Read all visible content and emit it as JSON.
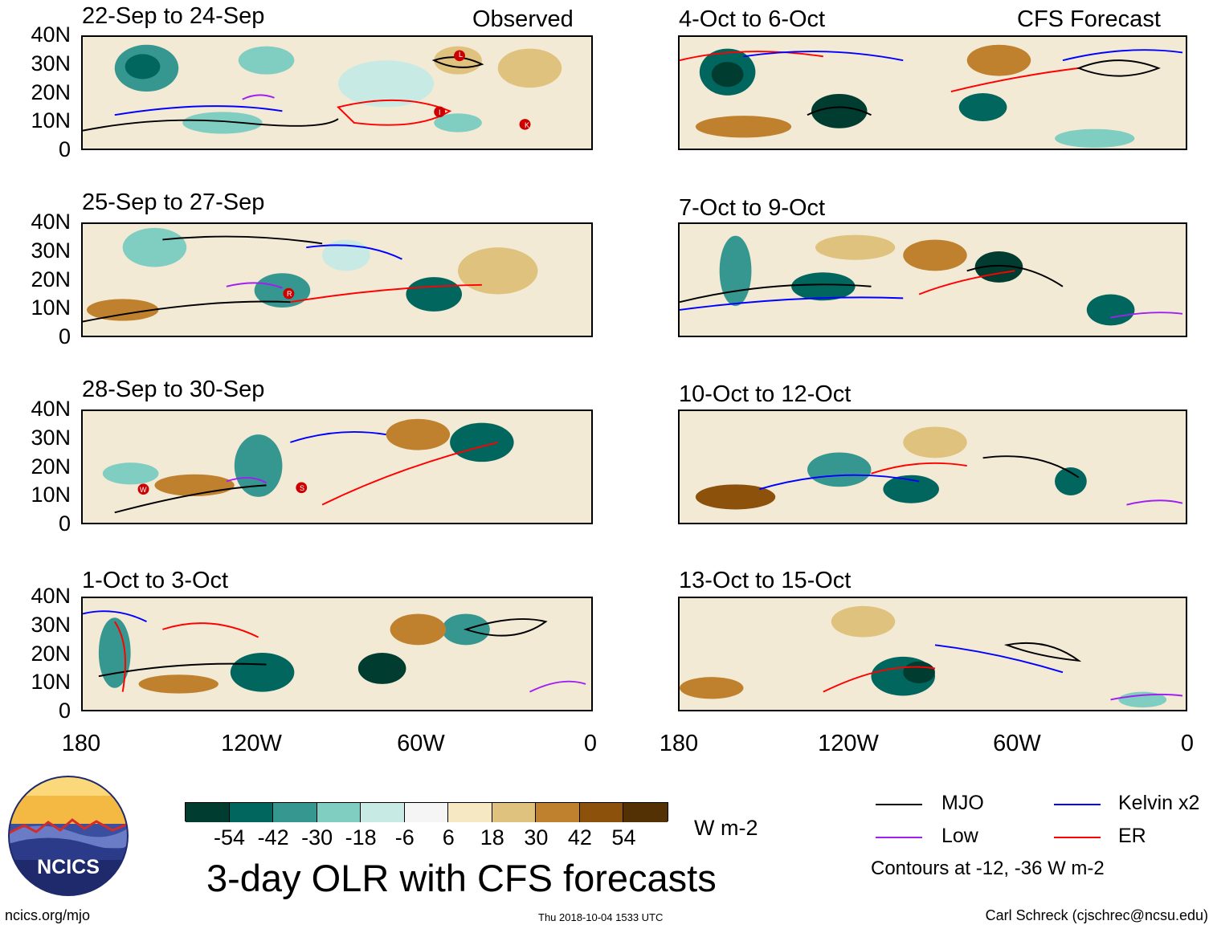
{
  "header": {
    "observed_label": "Observed",
    "forecast_label": "CFS Forecast"
  },
  "panels_observed": [
    {
      "title": "22-Sep to 24-Sep"
    },
    {
      "title": "25-Sep to 27-Sep"
    },
    {
      "title": "28-Sep to 30-Sep"
    },
    {
      "title": "1-Oct to 3-Oct"
    }
  ],
  "panels_forecast": [
    {
      "title": "4-Oct to 6-Oct"
    },
    {
      "title": "7-Oct to 9-Oct"
    },
    {
      "title": "10-Oct to 12-Oct"
    },
    {
      "title": "13-Oct to 15-Oct"
    }
  ],
  "axes": {
    "lat_ticks": [
      "40N",
      "30N",
      "20N",
      "10N",
      "0"
    ],
    "lon_ticks": [
      "180",
      "120W",
      "60W",
      "0"
    ]
  },
  "storm_markers": {
    "panel1": [
      "L",
      "I",
      "K"
    ],
    "panel2": [
      "R"
    ],
    "panel3": [
      "W",
      "S"
    ]
  },
  "colorbar": {
    "colors": [
      "#003c30",
      "#01665e",
      "#35978f",
      "#80cdc1",
      "#c7eae5",
      "#f5f5f5",
      "#f6e8c3",
      "#dfc27d",
      "#bf812d",
      "#8c510a",
      "#543005"
    ],
    "ticks": [
      "-54",
      "-42",
      "-30",
      "-18",
      "-6",
      "6",
      "18",
      "30",
      "42",
      "54"
    ],
    "unit": "W m-2"
  },
  "legend": {
    "items": [
      {
        "label": "MJO",
        "color": "#000000"
      },
      {
        "label": "Kelvin x2",
        "color": "#0000ff"
      },
      {
        "label": "Low",
        "color": "#a020f0"
      },
      {
        "label": "ER",
        "color": "#ff0000"
      }
    ],
    "note": "Contours at -12, -36 W m-2"
  },
  "footer": {
    "main_title": "3-day OLR with CFS forecasts",
    "logo_text": "NCICS",
    "website": "ncics.org/mjo",
    "timestamp": "Thu 2018-10-04 1533 UTC",
    "credit": "Carl Schreck (cjschrec@ncsu.edu)"
  }
}
